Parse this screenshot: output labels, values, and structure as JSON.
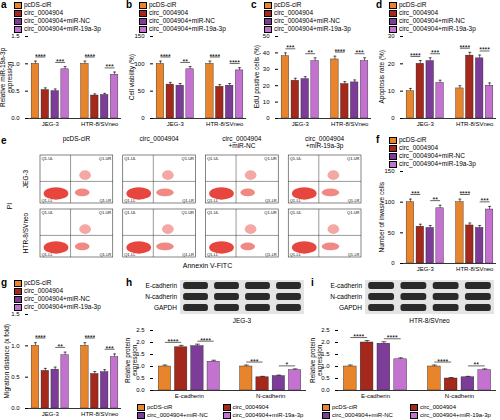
{
  "chart_data": [
    {
      "type": "bar",
      "title": "a",
      "y_label": "Relative miR-19a-3p expression",
      "categories": [
        "JEG-3",
        "HTR-8/SVneo"
      ],
      "series": [
        {
          "name": "pcDS-ciR",
          "color": "#e8842c",
          "values": [
            1.0,
            1.0
          ],
          "errors": [
            0.05,
            0.05
          ]
        },
        {
          "name": "circ_0004904",
          "color": "#a4281c",
          "values": [
            0.52,
            0.42
          ],
          "errors": [
            0.04,
            0.03
          ]
        },
        {
          "name": "circ_0004904+miR-NC",
          "color": "#7d3c98",
          "values": [
            0.5,
            0.43
          ],
          "errors": [
            0.04,
            0.03
          ]
        },
        {
          "name": "circ_0004904+miR-19a-3p",
          "color": "#c472d0",
          "values": [
            0.9,
            0.8
          ],
          "errors": [
            0.05,
            0.05
          ]
        }
      ],
      "ylim": [
        0,
        1.5
      ],
      "yticks": [
        {
          "value": 0,
          "label": "0.0"
        },
        0.5,
        {
          "value": 1,
          "label": "1.0"
        },
        1.5
      ],
      "legend": "top",
      "annotations": [
        {
          "group": "JEG-3",
          "between": [
            "pcDS-ciR",
            "circ_0004904"
          ],
          "text": "****"
        },
        {
          "group": "JEG-3",
          "between": [
            "circ_0004904+miR-NC",
            "circ_0004904+miR-19a-3p"
          ],
          "text": "***"
        },
        {
          "group": "HTR-8/SVneo",
          "between": [
            "pcDS-ciR",
            "circ_0004904"
          ],
          "text": "****"
        },
        {
          "group": "HTR-8/SVneo",
          "between": [
            "circ_0004904+miR-NC",
            "circ_0004904+miR-19a-3p"
          ],
          "text": "***"
        }
      ]
    },
    {
      "type": "bar",
      "title": "b",
      "y_label": "Cell viability (%)",
      "categories": [
        "JEG-3",
        "HTR-8/SVneo"
      ],
      "series": [
        {
          "name": "pcDS-ciR",
          "color": "#e8842c",
          "values": [
            100,
            100
          ],
          "errors": [
            5,
            5
          ]
        },
        {
          "name": "circ_0004904",
          "color": "#a4281c",
          "values": [
            62,
            58
          ],
          "errors": [
            4,
            4
          ]
        },
        {
          "name": "circ_0004904+miR-NC",
          "color": "#7d3c98",
          "values": [
            60,
            60
          ],
          "errors": [
            4,
            4
          ]
        },
        {
          "name": "circ_0004904+miR-19a-3p",
          "color": "#c472d0",
          "values": [
            90,
            88
          ],
          "errors": [
            5,
            5
          ]
        }
      ],
      "ylim": [
        0,
        150
      ],
      "yticks": [
        0,
        50,
        100,
        150
      ],
      "legend": "top",
      "annotations": [
        {
          "group": "JEG-3",
          "between": [
            "pcDS-ciR",
            "circ_0004904"
          ],
          "text": "****"
        },
        {
          "group": "JEG-3",
          "between": [
            "circ_0004904+miR-NC",
            "circ_0004904+miR-19a-3p"
          ],
          "text": "**"
        },
        {
          "group": "HTR-8/SVneo",
          "between": [
            "pcDS-ciR",
            "circ_0004904"
          ],
          "text": "****"
        },
        {
          "group": "HTR-8/SVneo",
          "between": [
            "circ_0004904+miR-NC",
            "circ_0004904+miR-19a-3p"
          ],
          "text": "****"
        }
      ]
    },
    {
      "type": "bar",
      "title": "c",
      "y_label": "EdU positive cells (%)",
      "categories": [
        "JEG-3",
        "HTR-8/SVneo"
      ],
      "series": [
        {
          "name": "pcDS-ciR",
          "color": "#e8842c",
          "values": [
            38,
            36
          ],
          "errors": [
            2,
            2
          ]
        },
        {
          "name": "circ_0004904",
          "color": "#a4281c",
          "values": [
            23,
            21
          ],
          "errors": [
            1.5,
            1.5
          ]
        },
        {
          "name": "circ_0004904+miR-NC",
          "color": "#7d3c98",
          "values": [
            24,
            22
          ],
          "errors": [
            1.5,
            1.5
          ]
        },
        {
          "name": "circ_0004904+miR-19a-3p",
          "color": "#c472d0",
          "values": [
            35,
            35
          ],
          "errors": [
            2,
            2
          ]
        }
      ],
      "ylim": [
        0,
        50
      ],
      "yticks": [
        0,
        10,
        20,
        30,
        40,
        50
      ],
      "legend": "top",
      "annotations": [
        {
          "group": "JEG-3",
          "between": [
            "pcDS-ciR",
            "circ_0004904"
          ],
          "text": "***"
        },
        {
          "group": "JEG-3",
          "between": [
            "circ_0004904+miR-NC",
            "circ_0004904+miR-19a-3p"
          ],
          "text": "**"
        },
        {
          "group": "HTR-8/SVneo",
          "between": [
            "pcDS-ciR",
            "circ_0004904"
          ],
          "text": "****"
        },
        {
          "group": "HTR-8/SVneo",
          "between": [
            "circ_0004904+miR-NC",
            "circ_0004904+miR-19a-3p"
          ],
          "text": "***"
        }
      ]
    },
    {
      "type": "bar",
      "title": "d",
      "y_label": "Apoptosis rate (%)",
      "categories": [
        "JEG-3",
        "HTR-8/SVneo"
      ],
      "series": [
        {
          "name": "pcDS-ciR",
          "color": "#e8842c",
          "values": [
            10,
            11
          ],
          "errors": [
            1,
            1
          ]
        },
        {
          "name": "circ_0004904",
          "color": "#a4281c",
          "values": [
            20,
            23
          ],
          "errors": [
            1.2,
            1.2
          ]
        },
        {
          "name": "circ_0004904+miR-NC",
          "color": "#7d3c98",
          "values": [
            21,
            22
          ],
          "errors": [
            1.2,
            1.2
          ]
        },
        {
          "name": "circ_0004904+miR-19a-3p",
          "color": "#c472d0",
          "values": [
            13,
            12
          ],
          "errors": [
            1,
            1
          ]
        }
      ],
      "ylim": [
        0,
        30
      ],
      "yticks": [
        0,
        10,
        20,
        30
      ],
      "legend": "top",
      "annotations": [
        {
          "group": "JEG-3",
          "between": [
            "pcDS-ciR",
            "circ_0004904"
          ],
          "text": "****"
        },
        {
          "group": "JEG-3",
          "between": [
            "circ_0004904+miR-NC",
            "circ_0004904+miR-19a-3p"
          ],
          "text": "***"
        },
        {
          "group": "HTR-8/SVneo",
          "between": [
            "pcDS-ciR",
            "circ_0004904"
          ],
          "text": "****"
        },
        {
          "group": "HTR-8/SVneo",
          "between": [
            "circ_0004904+miR-NC",
            "circ_0004904+miR-19a-3p"
          ],
          "text": "****"
        }
      ]
    },
    {
      "type": "bar",
      "title": "f",
      "y_label": "Number of invasive cells",
      "categories": [
        "JEG-3",
        "HTR-8/SVneo"
      ],
      "series": [
        {
          "name": "pcDS-ciR",
          "color": "#e8842c",
          "values": [
            100,
            100
          ],
          "errors": [
            5,
            5
          ]
        },
        {
          "name": "circ_0004904",
          "color": "#a4281c",
          "values": [
            60,
            62
          ],
          "errors": [
            4,
            4
          ]
        },
        {
          "name": "circ_0004904+miR-NC",
          "color": "#7d3c98",
          "values": [
            58,
            58
          ],
          "errors": [
            4,
            4
          ]
        },
        {
          "name": "circ_0004904+miR-19a-3p",
          "color": "#c472d0",
          "values": [
            90,
            88
          ],
          "errors": [
            5,
            5
          ]
        }
      ],
      "ylim": [
        0,
        150
      ],
      "yticks": [
        0,
        50,
        100,
        150
      ],
      "legend": "top",
      "annotations": [
        {
          "group": "JEG-3",
          "between": [
            "pcDS-ciR",
            "circ_0004904"
          ],
          "text": "***"
        },
        {
          "group": "JEG-3",
          "between": [
            "circ_0004904+miR-NC",
            "circ_0004904+miR-19a-3p"
          ],
          "text": "**"
        },
        {
          "group": "HTR-8/SVneo",
          "between": [
            "pcDS-ciR",
            "circ_0004904"
          ],
          "text": "****"
        },
        {
          "group": "HTR-8/SVneo",
          "between": [
            "circ_0004904+miR-NC",
            "circ_0004904+miR-19a-3p"
          ],
          "text": "***"
        }
      ]
    },
    {
      "type": "bar",
      "title": "g",
      "y_label": "Migration distance (x fold)",
      "categories": [
        "JEG-3",
        "HTR-8/SVneo"
      ],
      "series": [
        {
          "name": "pcDS-ciR",
          "color": "#e8842c",
          "values": [
            1.0,
            1.0
          ],
          "errors": [
            0.05,
            0.05
          ]
        },
        {
          "name": "circ_0004904",
          "color": "#a4281c",
          "values": [
            0.6,
            0.55
          ],
          "errors": [
            0.04,
            0.04
          ]
        },
        {
          "name": "circ_0004904+miR-NC",
          "color": "#7d3c98",
          "values": [
            0.62,
            0.58
          ],
          "errors": [
            0.04,
            0.04
          ]
        },
        {
          "name": "circ_0004904+miR-19a-3p",
          "color": "#c472d0",
          "values": [
            0.85,
            0.82
          ],
          "errors": [
            0.05,
            0.05
          ]
        }
      ],
      "ylim": [
        0,
        1.5
      ],
      "yticks": [
        {
          "value": 0,
          "label": "0.0"
        },
        0.5,
        {
          "value": 1,
          "label": "1.0"
        },
        1.5
      ],
      "legend": "top",
      "annotations": [
        {
          "group": "JEG-3",
          "between": [
            "pcDS-ciR",
            "circ_0004904"
          ],
          "text": "****"
        },
        {
          "group": "JEG-3",
          "between": [
            "circ_0004904+miR-NC",
            "circ_0004904+miR-19a-3p"
          ],
          "text": "**"
        },
        {
          "group": "HTR-8/SVneo",
          "between": [
            "pcDS-ciR",
            "circ_0004904"
          ],
          "text": "****"
        },
        {
          "group": "HTR-8/SVneo",
          "between": [
            "circ_0004904+miR-NC",
            "circ_0004904+miR-19a-3p"
          ],
          "text": "***"
        }
      ]
    },
    {
      "type": "bar",
      "title": "h",
      "y_label": "Relative protein expression",
      "categories": [
        "E-cadherin",
        "N-cadherin"
      ],
      "series": [
        {
          "name": "pcDS-ciR",
          "color": "#e8842c",
          "values": [
            1.0,
            1.0
          ],
          "errors": [
            0.06,
            0.06
          ]
        },
        {
          "name": "circ_0004904",
          "color": "#a4281c",
          "values": [
            1.8,
            0.55
          ],
          "errors": [
            0.08,
            0.04
          ]
        },
        {
          "name": "circ_0004904+miR-NC",
          "color": "#7d3c98",
          "values": [
            1.85,
            0.6
          ],
          "errors": [
            0.08,
            0.04
          ]
        },
        {
          "name": "circ_0004904+miR-19a-3p",
          "color": "#c472d0",
          "values": [
            1.2,
            0.85
          ],
          "errors": [
            0.06,
            0.05
          ]
        }
      ],
      "ylim": [
        0,
        2.5
      ],
      "yticks": [
        {
          "value": 0,
          "label": "0.0"
        },
        0.5,
        {
          "value": 1,
          "label": "1.0"
        },
        1.5,
        {
          "value": 2,
          "label": "2.0"
        },
        2.5
      ],
      "legend": "bottom",
      "annotations": [
        {
          "group": "E-cadherin",
          "between": [
            "pcDS-ciR",
            "circ_0004904"
          ],
          "text": "****"
        },
        {
          "group": "E-cadherin",
          "between": [
            "circ_0004904+miR-NC",
            "circ_0004904+miR-19a-3p"
          ],
          "text": "****"
        },
        {
          "group": "N-cadherin",
          "between": [
            "pcDS-ciR",
            "circ_0004904"
          ],
          "text": "***"
        },
        {
          "group": "N-cadherin",
          "between": [
            "circ_0004904+miR-NC",
            "circ_0004904+miR-19a-3p"
          ],
          "text": "*"
        }
      ]
    },
    {
      "type": "bar",
      "title": "i",
      "y_label": "Relative protein expression",
      "categories": [
        "E-cadherin",
        "N-cadherin"
      ],
      "series": [
        {
          "name": "pcDS-ciR",
          "color": "#e8842c",
          "values": [
            1.0,
            1.0
          ],
          "errors": [
            0.06,
            0.06
          ]
        },
        {
          "name": "circ_0004904",
          "color": "#a4281c",
          "values": [
            2.0,
            0.5
          ],
          "errors": [
            0.08,
            0.04
          ]
        },
        {
          "name": "circ_0004904+miR-NC",
          "color": "#7d3c98",
          "values": [
            1.95,
            0.55
          ],
          "errors": [
            0.08,
            0.04
          ]
        },
        {
          "name": "circ_0004904+miR-19a-3p",
          "color": "#c472d0",
          "values": [
            1.3,
            0.85
          ],
          "errors": [
            0.06,
            0.05
          ]
        }
      ],
      "ylim": [
        0,
        2.5
      ],
      "yticks": [
        {
          "value": 0,
          "label": "0.0"
        },
        0.5,
        {
          "value": 1,
          "label": "1.0"
        },
        1.5,
        {
          "value": 2,
          "label": "2.0"
        },
        2.5
      ],
      "legend": "bottom",
      "annotations": [
        {
          "group": "E-cadherin",
          "between": [
            "pcDS-ciR",
            "circ_0004904"
          ],
          "text": "****"
        },
        {
          "group": "E-cadherin",
          "between": [
            "circ_0004904+miR-NC",
            "circ_0004904+miR-19a-3p"
          ],
          "text": "****"
        },
        {
          "group": "N-cadherin",
          "between": [
            "pcDS-ciR",
            "circ_0004904"
          ],
          "text": "****"
        },
        {
          "group": "N-cadherin",
          "between": [
            "circ_0004904+miR-NC",
            "circ_0004904+miR-19a-3p"
          ],
          "text": "**"
        }
      ]
    }
  ],
  "panel_e": {
    "title": "e",
    "columns": [
      [
        "pcDS-ciR"
      ],
      [
        "circ_0004904"
      ],
      [
        "circ_0004904",
        "+miR-NC"
      ],
      [
        "circ_0004904",
        "+miR-19a-3p"
      ]
    ],
    "rows": [
      "JEG-3",
      "HTR-8/SVneo"
    ],
    "x_label": "Annexin V-FITC",
    "y_label": "PI",
    "quadrants": [
      "Q1-UL",
      "Q1-UR",
      "Q1-LL",
      "Q1-LR"
    ]
  },
  "blots": [
    {
      "label": "JEG-3",
      "bands": [
        "E-cadherin",
        "N-cadherin",
        "GAPDH"
      ]
    },
    {
      "label": "HTR-8/SVneo",
      "bands": [
        "E-cadherin",
        "N-cadherin",
        "GAPDH"
      ]
    }
  ]
}
